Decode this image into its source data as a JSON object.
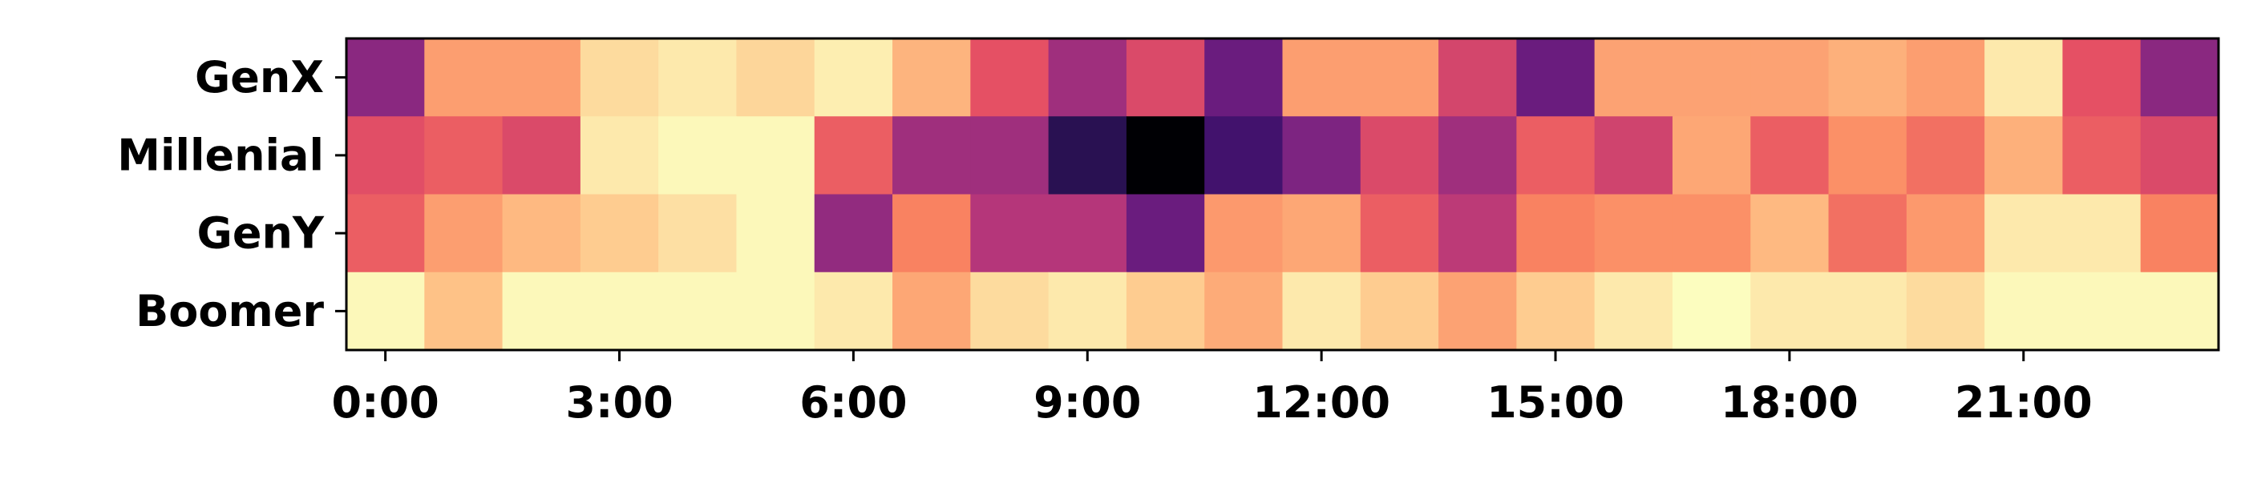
{
  "chart_data": {
    "type": "heatmap",
    "title": "",
    "xlabel": "",
    "ylabel": "",
    "rows": [
      "GenX",
      "Millenial",
      "GenY",
      "Boomer"
    ],
    "columns": [
      "0:00",
      "1:00",
      "2:00",
      "3:00",
      "4:00",
      "5:00",
      "6:00",
      "7:00",
      "8:00",
      "9:00",
      "10:00",
      "11:00",
      "12:00",
      "13:00",
      "14:00",
      "15:00",
      "16:00",
      "17:00",
      "18:00",
      "19:00",
      "20:00",
      "21:00",
      "22:00",
      "23:00"
    ],
    "x_tick_labels": [
      "0:00",
      "3:00",
      "6:00",
      "9:00",
      "12:00",
      "15:00",
      "18:00",
      "21:00"
    ],
    "x_tick_positions": [
      0,
      3,
      6,
      9,
      12,
      15,
      18,
      21
    ],
    "colormap": "magma",
    "value_range": [
      0,
      1
    ],
    "values": [
      [
        0.4,
        0.8,
        0.8,
        0.93,
        0.96,
        0.92,
        0.97,
        0.85,
        0.63,
        0.45,
        0.6,
        0.32,
        0.8,
        0.8,
        0.58,
        0.32,
        0.81,
        0.81,
        0.81,
        0.84,
        0.8,
        0.96,
        0.63,
        0.4
      ],
      [
        0.62,
        0.66,
        0.6,
        0.96,
        0.99,
        0.99,
        0.66,
        0.45,
        0.45,
        0.16,
        0.0,
        0.22,
        0.37,
        0.6,
        0.45,
        0.66,
        0.57,
        0.82,
        0.66,
        0.77,
        0.7,
        0.84,
        0.66,
        0.6
      ],
      [
        0.66,
        0.8,
        0.86,
        0.9,
        0.94,
        0.99,
        0.42,
        0.74,
        0.5,
        0.5,
        0.32,
        0.79,
        0.82,
        0.66,
        0.52,
        0.74,
        0.77,
        0.77,
        0.86,
        0.7,
        0.79,
        0.96,
        0.96,
        0.74
      ],
      [
        0.99,
        0.88,
        0.99,
        0.99,
        0.99,
        0.99,
        0.96,
        0.82,
        0.93,
        0.96,
        0.9,
        0.83,
        0.96,
        0.9,
        0.81,
        0.9,
        0.96,
        1.0,
        0.96,
        0.96,
        0.93,
        0.99,
        0.99,
        0.99
      ]
    ],
    "grid": false,
    "legend": "none"
  }
}
